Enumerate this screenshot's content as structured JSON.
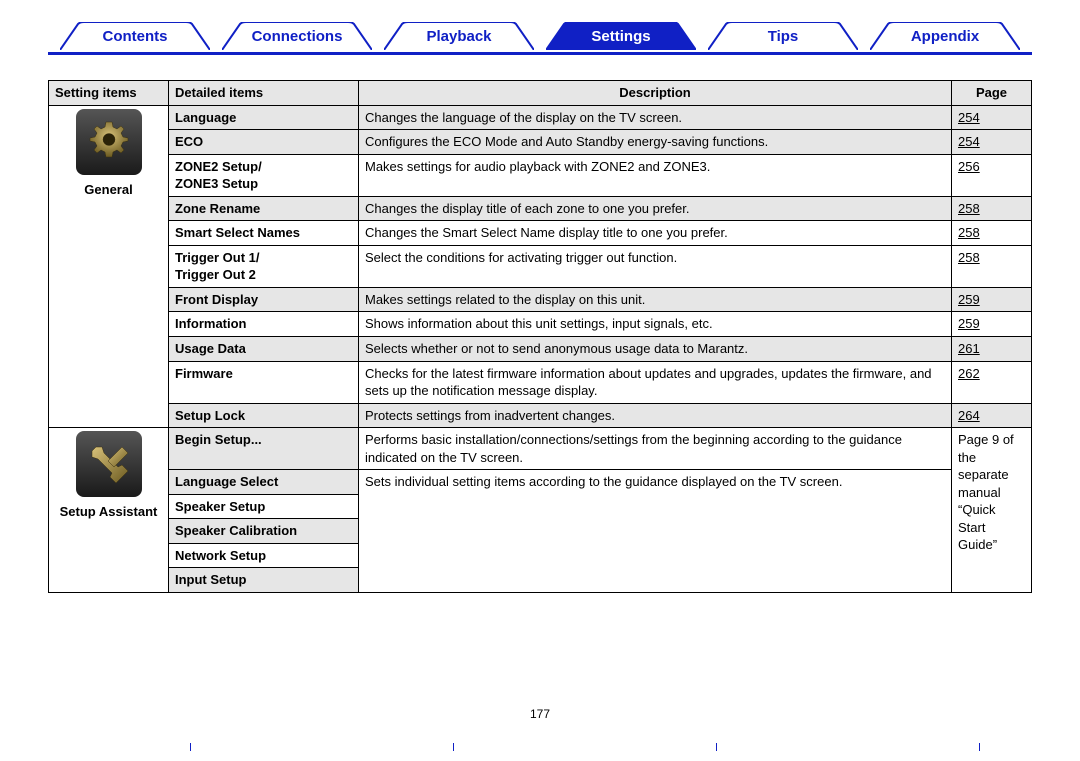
{
  "colors": {
    "primary": "#1020c5",
    "header_bg": "#e6e6e6",
    "row_gray": "#e6e6e6",
    "row_white": "#ffffff",
    "border": "#000000"
  },
  "nav": {
    "tabs": [
      {
        "label": "Contents",
        "active": false
      },
      {
        "label": "Connections",
        "active": false
      },
      {
        "label": "Playback",
        "active": false
      },
      {
        "label": "Settings",
        "active": true
      },
      {
        "label": "Tips",
        "active": false
      },
      {
        "label": "Appendix",
        "active": false
      }
    ]
  },
  "table": {
    "headers": {
      "setting": "Setting items",
      "detail": "Detailed items",
      "desc": "Description",
      "page": "Page"
    },
    "groups": [
      {
        "icon": "gear-icon",
        "category": "General",
        "rows": [
          {
            "detail": "Language",
            "desc": "Changes the language of the display on the TV screen.",
            "page": "254",
            "gray": true,
            "detail_gray": true,
            "underline": true
          },
          {
            "detail": "ECO",
            "desc": "Configures the ECO Mode and Auto Standby energy-saving functions.",
            "page": "254",
            "gray": true,
            "detail_gray": true,
            "underline": true
          },
          {
            "detail": "ZONE2 Setup/\nZONE3 Setup",
            "desc": "Makes settings for audio playback with ZONE2 and ZONE3.",
            "page": "256",
            "gray": false,
            "detail_gray": false,
            "underline": true
          },
          {
            "detail": "Zone Rename",
            "desc": "Changes the display title of each zone to one you prefer.",
            "page": "258",
            "gray": true,
            "detail_gray": true,
            "underline": true
          },
          {
            "detail": "Smart Select Names",
            "desc": "Changes the Smart Select Name display title to one you prefer.",
            "page": "258",
            "gray": false,
            "detail_gray": false,
            "underline": true
          },
          {
            "detail": "Trigger Out 1/\nTrigger Out 2",
            "desc": "Select the conditions for activating trigger out function.",
            "page": "258",
            "gray": false,
            "detail_gray": false,
            "underline": true
          },
          {
            "detail": "Front Display",
            "desc": "Makes settings related to the display on this unit.",
            "page": "259",
            "gray": true,
            "detail_gray": true,
            "underline": true
          },
          {
            "detail": "Information",
            "desc": "Shows information about this unit settings, input signals, etc.",
            "page": "259",
            "gray": false,
            "detail_gray": false,
            "underline": true
          },
          {
            "detail": "Usage Data",
            "desc": "Selects whether or not to send anonymous usage data to Marantz.",
            "page": "261",
            "gray": true,
            "detail_gray": true,
            "underline": true
          },
          {
            "detail": "Firmware",
            "desc": "Checks for the latest firmware information about updates and upgrades, updates the firmware, and sets up the notification message display.",
            "page": "262",
            "gray": false,
            "detail_gray": false,
            "underline": true
          },
          {
            "detail": "Setup Lock",
            "desc": "Protects settings from inadvertent changes.",
            "page": "264",
            "gray": true,
            "detail_gray": true,
            "underline": true
          }
        ]
      },
      {
        "icon": "wrench-icon",
        "category": "Setup Assistant",
        "shared_page": "Page 9 of the separate manual “Quick Start Guide”",
        "rows": [
          {
            "detail": "Begin Setup...",
            "desc": "Performs basic installation/connections/settings from the beginning according to the guidance indicated on the TV screen.",
            "detail_gray": true
          },
          {
            "detail": "Language Select",
            "desc": "Sets individual setting items according to the guidance displayed on the TV screen.",
            "detail_gray": true,
            "desc_rowspan": 5
          },
          {
            "detail": "Speaker Setup",
            "detail_gray": false
          },
          {
            "detail": "Speaker Calibration",
            "detail_gray": true
          },
          {
            "detail": "Network Setup",
            "detail_gray": false
          },
          {
            "detail": "Input Setup",
            "detail_gray": true
          }
        ]
      }
    ]
  },
  "footer": {
    "page_number": "177"
  }
}
